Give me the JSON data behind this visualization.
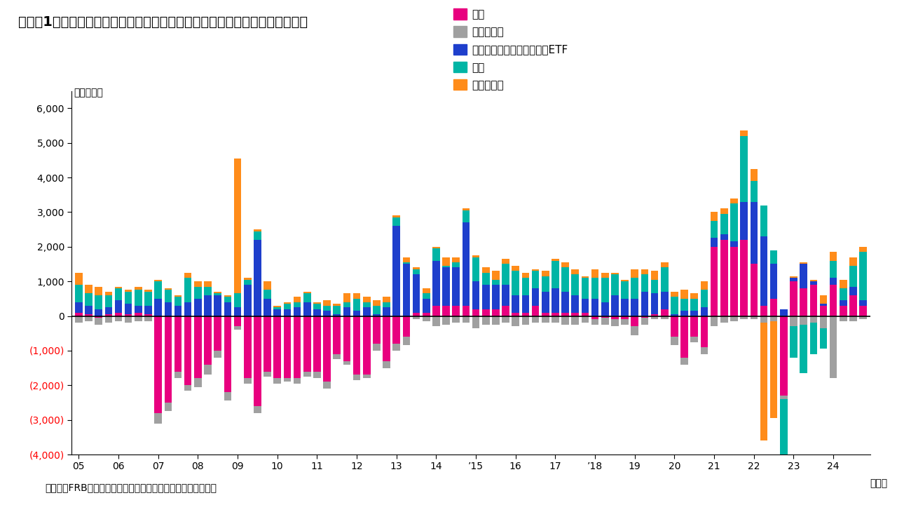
{
  "title": "（図表1）米国株式市場における主体別ネット購入額の推移（四半期ベース）",
  "ylabel": "（億ドル）",
  "xlabel_unit": "（年）",
  "source": "（出所）FRB（米連邦準備理事会）資料よりインベスコが作成",
  "legend_labels": [
    "家計",
    "保険・年金",
    "ミューチュアルファンド・ETF",
    "海外",
    "その他主体"
  ],
  "colors": [
    "#E8007F",
    "#A0A0A0",
    "#1E3FCC",
    "#00B5A5",
    "#FF8C1A"
  ],
  "ylim": [
    -4000,
    6500
  ],
  "yticks": [
    -4000,
    -3000,
    -2000,
    -1000,
    0,
    1000,
    2000,
    3000,
    4000,
    5000,
    6000
  ],
  "year_labels": [
    "05",
    "06",
    "07",
    "08",
    "09",
    "10",
    "11",
    "12",
    "13",
    "14",
    "15",
    "16",
    "17",
    "18",
    "19",
    "20",
    "21",
    "22",
    "23",
    "24"
  ],
  "data": {
    "家計": [
      100,
      50,
      -50,
      50,
      100,
      50,
      100,
      50,
      -2800,
      -2500,
      -1600,
      -2000,
      -1800,
      -1400,
      -1000,
      -2200,
      -300,
      -1800,
      -2600,
      -1600,
      -1800,
      -1800,
      -1800,
      -1600,
      -1600,
      -1900,
      -1100,
      -1300,
      -1700,
      -1700,
      -800,
      -1300,
      -800,
      -600,
      100,
      100,
      300,
      300,
      300,
      300,
      200,
      200,
      200,
      300,
      100,
      100,
      300,
      100,
      100,
      100,
      100,
      100,
      -100,
      -50,
      -100,
      -100,
      -300,
      -50,
      50,
      200,
      -600,
      -1200,
      -600,
      -900,
      2000,
      2200,
      2000,
      2200,
      1500,
      300,
      500,
      -2300,
      1000,
      800,
      900,
      300,
      900,
      300,
      600,
      300
    ],
    "保険・年金": [
      -200,
      -150,
      -200,
      -200,
      -150,
      -200,
      -150,
      -150,
      -300,
      -250,
      -200,
      -150,
      -250,
      -300,
      -200,
      -250,
      -100,
      -150,
      -200,
      -150,
      -150,
      -100,
      -150,
      -150,
      -200,
      -200,
      -150,
      -100,
      -150,
      -100,
      -200,
      -200,
      -200,
      -250,
      -100,
      -150,
      -300,
      -250,
      -200,
      -200,
      -350,
      -250,
      -250,
      -200,
      -300,
      -250,
      -200,
      -200,
      -200,
      -250,
      -250,
      -200,
      -150,
      -200,
      -200,
      -150,
      -250,
      -200,
      -100,
      -100,
      -250,
      -200,
      -150,
      -200,
      -300,
      -200,
      -150,
      -100,
      -100,
      -200,
      -150,
      -100,
      -300,
      -250,
      -200,
      -350,
      -1800,
      -150,
      -150,
      -100
    ],
    "ミューチュアルファンド・ETF": [
      300,
      250,
      200,
      200,
      350,
      300,
      200,
      250,
      500,
      400,
      300,
      400,
      500,
      600,
      600,
      400,
      250,
      900,
      2200,
      500,
      200,
      200,
      250,
      400,
      200,
      150,
      50,
      250,
      150,
      250,
      50,
      250,
      2600,
      1500,
      1100,
      400,
      1300,
      1100,
      1100,
      2400,
      800,
      700,
      700,
      600,
      500,
      500,
      500,
      600,
      700,
      600,
      500,
      400,
      500,
      400,
      600,
      500,
      500,
      700,
      600,
      500,
      50,
      150,
      150,
      250,
      250,
      150,
      150,
      1100,
      1800,
      2000,
      1000,
      200,
      100,
      700,
      100,
      50,
      200,
      150,
      250,
      150
    ],
    "海外": [
      500,
      350,
      400,
      350,
      350,
      350,
      450,
      400,
      500,
      350,
      250,
      700,
      350,
      250,
      50,
      150,
      400,
      150,
      250,
      250,
      50,
      150,
      150,
      250,
      150,
      150,
      250,
      150,
      350,
      150,
      250,
      150,
      250,
      50,
      150,
      150,
      350,
      50,
      150,
      350,
      700,
      350,
      150,
      600,
      700,
      500,
      500,
      450,
      800,
      700,
      600,
      600,
      600,
      700,
      600,
      500,
      600,
      500,
      400,
      700,
      500,
      350,
      350,
      500,
      500,
      600,
      1100,
      1900,
      600,
      900,
      400,
      -3300,
      -900,
      -1400,
      -900,
      -600,
      500,
      350,
      600,
      1400
    ],
    "その他主体": [
      350,
      250,
      250,
      100,
      50,
      50,
      100,
      50,
      50,
      50,
      50,
      150,
      150,
      150,
      50,
      50,
      3900,
      50,
      50,
      250,
      50,
      50,
      150,
      50,
      50,
      150,
      50,
      250,
      150,
      150,
      150,
      150,
      50,
      150,
      50,
      150,
      50,
      250,
      150,
      50,
      50,
      150,
      250,
      150,
      150,
      150,
      50,
      150,
      50,
      150,
      150,
      50,
      250,
      150,
      50,
      50,
      250,
      150,
      250,
      150,
      150,
      250,
      150,
      250,
      250,
      150,
      150,
      150,
      350,
      -3400,
      -2800,
      -3100,
      50,
      50,
      50,
      250,
      250,
      250,
      250,
      150
    ]
  }
}
